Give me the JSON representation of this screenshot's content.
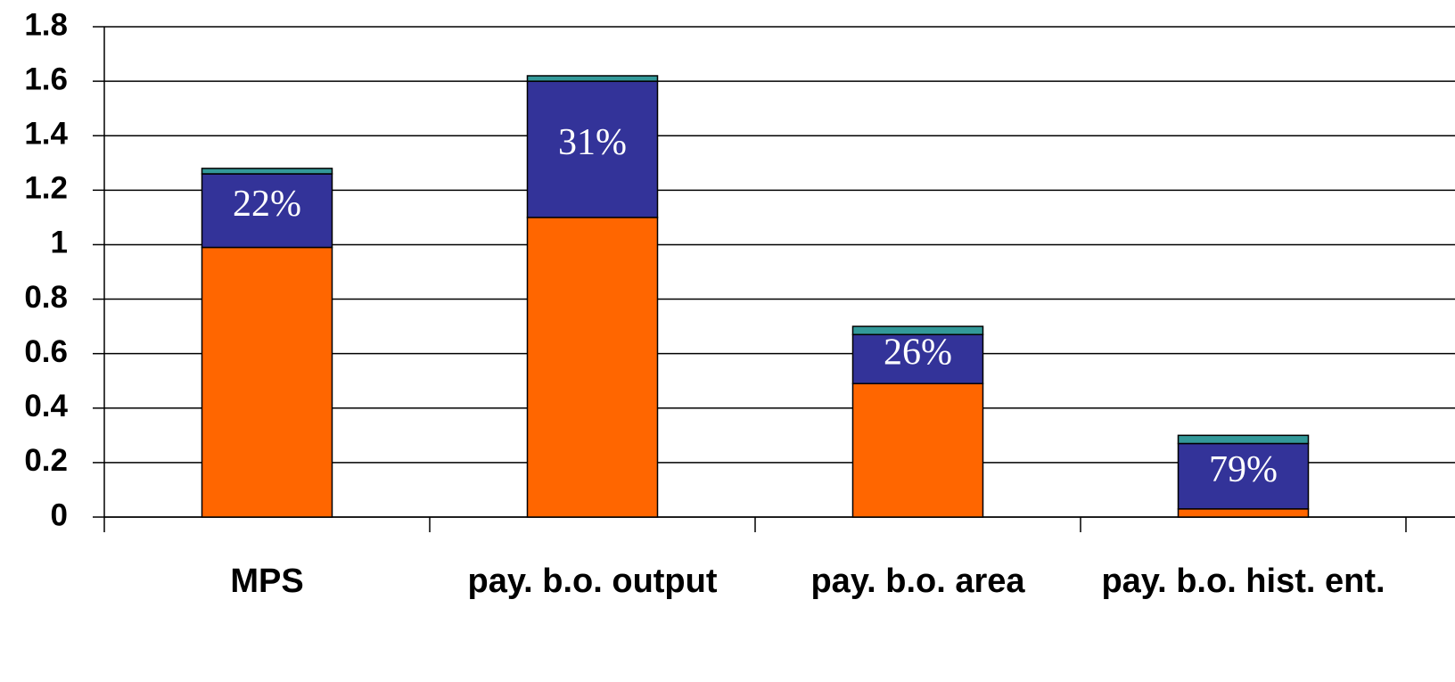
{
  "chart_data": {
    "type": "stacked_bar",
    "categories": [
      "MPS",
      "pay. b.o. output",
      "pay. b.o. area",
      "pay. b.o. hist. ent."
    ],
    "series": [
      {
        "color": "#FF6600",
        "values": [
          0.99,
          1.1,
          0.49,
          0.03
        ]
      },
      {
        "color": "#333399",
        "values": [
          0.27,
          0.5,
          0.18,
          0.24
        ]
      },
      {
        "color": "#339999",
        "values": [
          0.02,
          0.02,
          0.03,
          0.03
        ]
      }
    ],
    "annotations": [
      "22%",
      "31%",
      "26%",
      "79%"
    ],
    "ylim": [
      0,
      1.8
    ],
    "yticks": [
      0,
      0.2,
      0.4,
      0.6,
      0.8,
      1,
      1.2,
      1.4,
      1.6,
      1.8
    ],
    "grid": true
  }
}
